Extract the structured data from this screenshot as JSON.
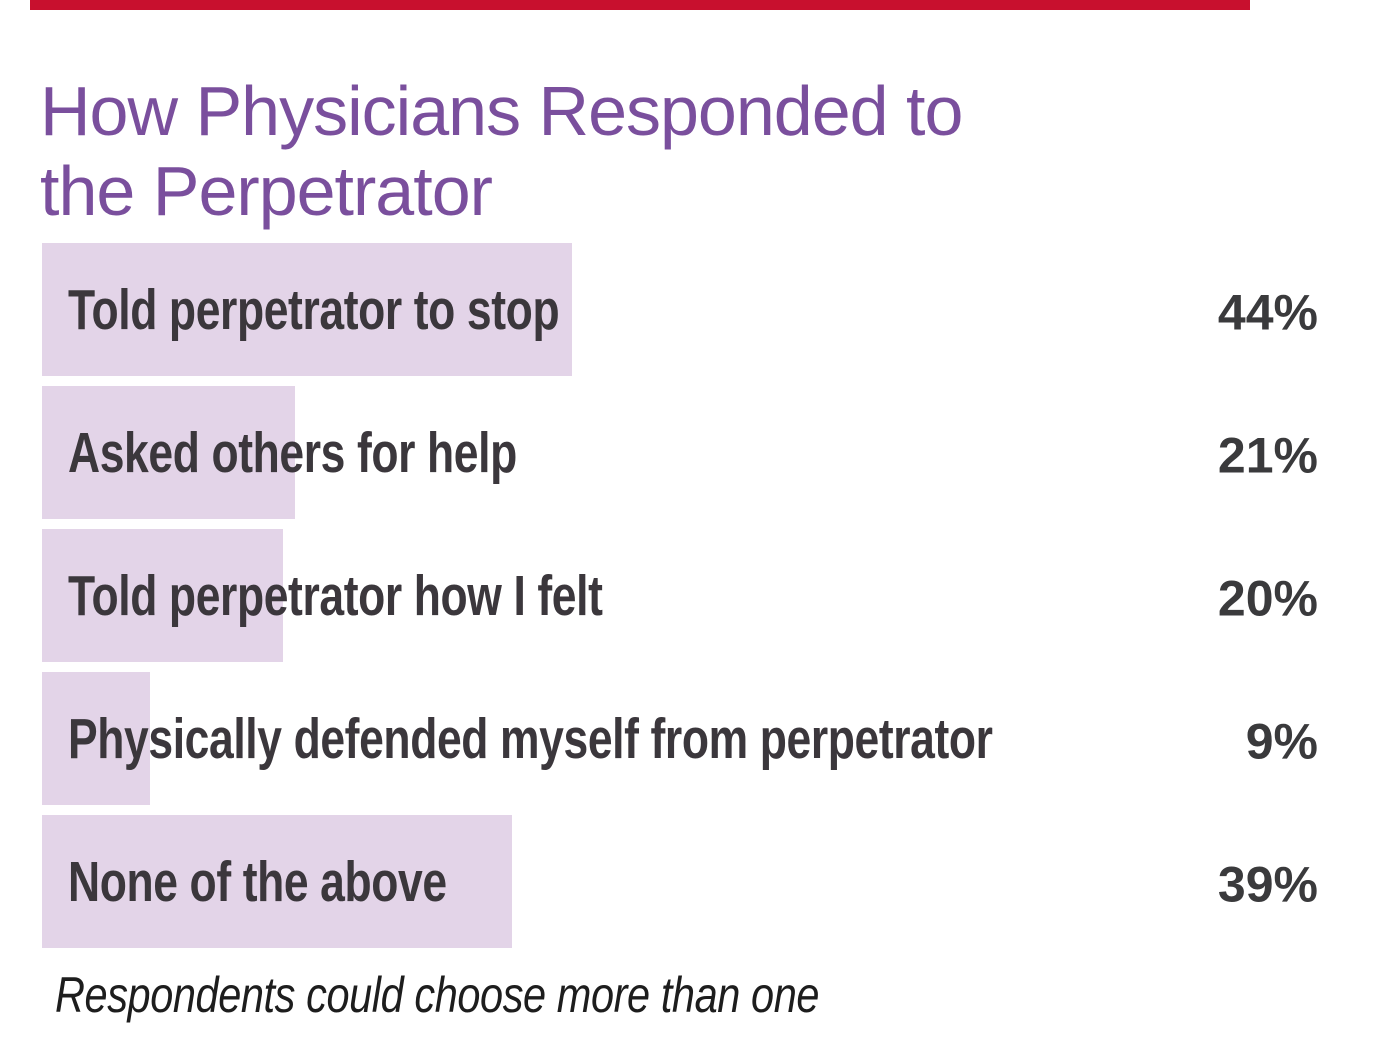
{
  "theme": {
    "accent_bar_color": "#c8102e",
    "title_color": "#7a4f9d",
    "bar_fill_color": "#e3d4e8",
    "label_color": "#3b373c",
    "value_color": "#3a3a3c"
  },
  "title": "How Physicians Responded to the Perpetrator",
  "chart_data": {
    "type": "bar",
    "orientation": "horizontal",
    "title": "How Physicians Responded to the Perpetrator",
    "categories": [
      "Told perpetrator to stop",
      "Asked others for help",
      "Told perpetrator how I felt",
      "Physically defended myself from perpetrator",
      "None of the above"
    ],
    "values": [
      44,
      21,
      20,
      9,
      39
    ],
    "value_labels": [
      "44%",
      "21%",
      "20%",
      "9%",
      "39%"
    ],
    "xlim": [
      0,
      100
    ],
    "grid": false,
    "legend": false,
    "bar_labels_inside": true,
    "value_label_position": "right-column",
    "footnote": "Respondents could choose more than one"
  }
}
